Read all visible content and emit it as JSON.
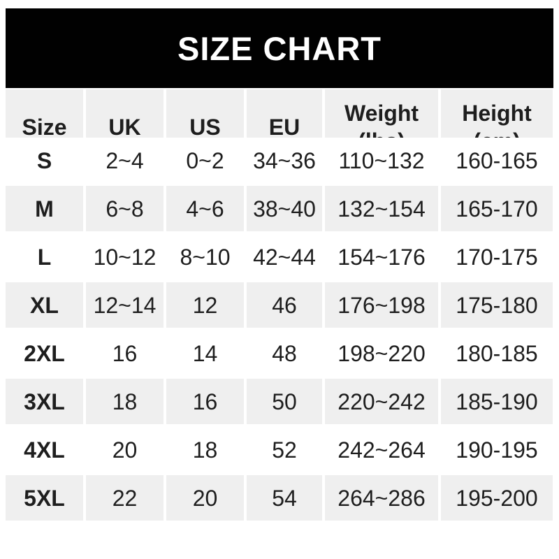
{
  "banner": {
    "title": "SIZE CHART",
    "background_color": "#010101",
    "text_color": "#ffffff"
  },
  "style": {
    "row_shade_color": "#efefef",
    "row_alt_color": "#ffffff",
    "text_color": "#1e1e1e"
  },
  "table": {
    "headers": [
      "Size",
      "UK",
      "US",
      "EU",
      "Weight\n(lbs)",
      "Height\n(cm)"
    ],
    "rows": [
      {
        "size": "S",
        "uk": "2~4",
        "us": "0~2",
        "eu": "34~36",
        "weight": "110~132",
        "height": "160-165"
      },
      {
        "size": "M",
        "uk": "6~8",
        "us": "4~6",
        "eu": "38~40",
        "weight": "132~154",
        "height": "165-170"
      },
      {
        "size": "L",
        "uk": "10~12",
        "us": "8~10",
        "eu": "42~44",
        "weight": "154~176",
        "height": "170-175"
      },
      {
        "size": "XL",
        "uk": "12~14",
        "us": "12",
        "eu": "46",
        "weight": "176~198",
        "height": "175-180"
      },
      {
        "size": "2XL",
        "uk": "16",
        "us": "14",
        "eu": "48",
        "weight": "198~220",
        "height": "180-185"
      },
      {
        "size": "3XL",
        "uk": "18",
        "us": "16",
        "eu": "50",
        "weight": "220~242",
        "height": "185-190"
      },
      {
        "size": "4XL",
        "uk": "20",
        "us": "18",
        "eu": "52",
        "weight": "242~264",
        "height": "190-195"
      },
      {
        "size": "5XL",
        "uk": "22",
        "us": "20",
        "eu": "54",
        "weight": "264~286",
        "height": "195-200"
      }
    ]
  },
  "chart_data": {
    "type": "table",
    "title": "SIZE CHART",
    "columns": [
      "Size",
      "UK",
      "US",
      "EU",
      "Weight (lbs)",
      "Height (cm)"
    ],
    "rows": [
      [
        "S",
        "2~4",
        "0~2",
        "34~36",
        "110~132",
        "160-165"
      ],
      [
        "M",
        "6~8",
        "4~6",
        "38~40",
        "132~154",
        "165-170"
      ],
      [
        "L",
        "10~12",
        "8~10",
        "42~44",
        "154~176",
        "170-175"
      ],
      [
        "XL",
        "12~14",
        "12",
        "46",
        "176~198",
        "175-180"
      ],
      [
        "2XL",
        "16",
        "14",
        "48",
        "198~220",
        "180-185"
      ],
      [
        "3XL",
        "18",
        "16",
        "50",
        "220~242",
        "185-190"
      ],
      [
        "4XL",
        "20",
        "18",
        "52",
        "242~264",
        "190-195"
      ],
      [
        "5XL",
        "22",
        "20",
        "54",
        "264~286",
        "195-200"
      ]
    ]
  }
}
